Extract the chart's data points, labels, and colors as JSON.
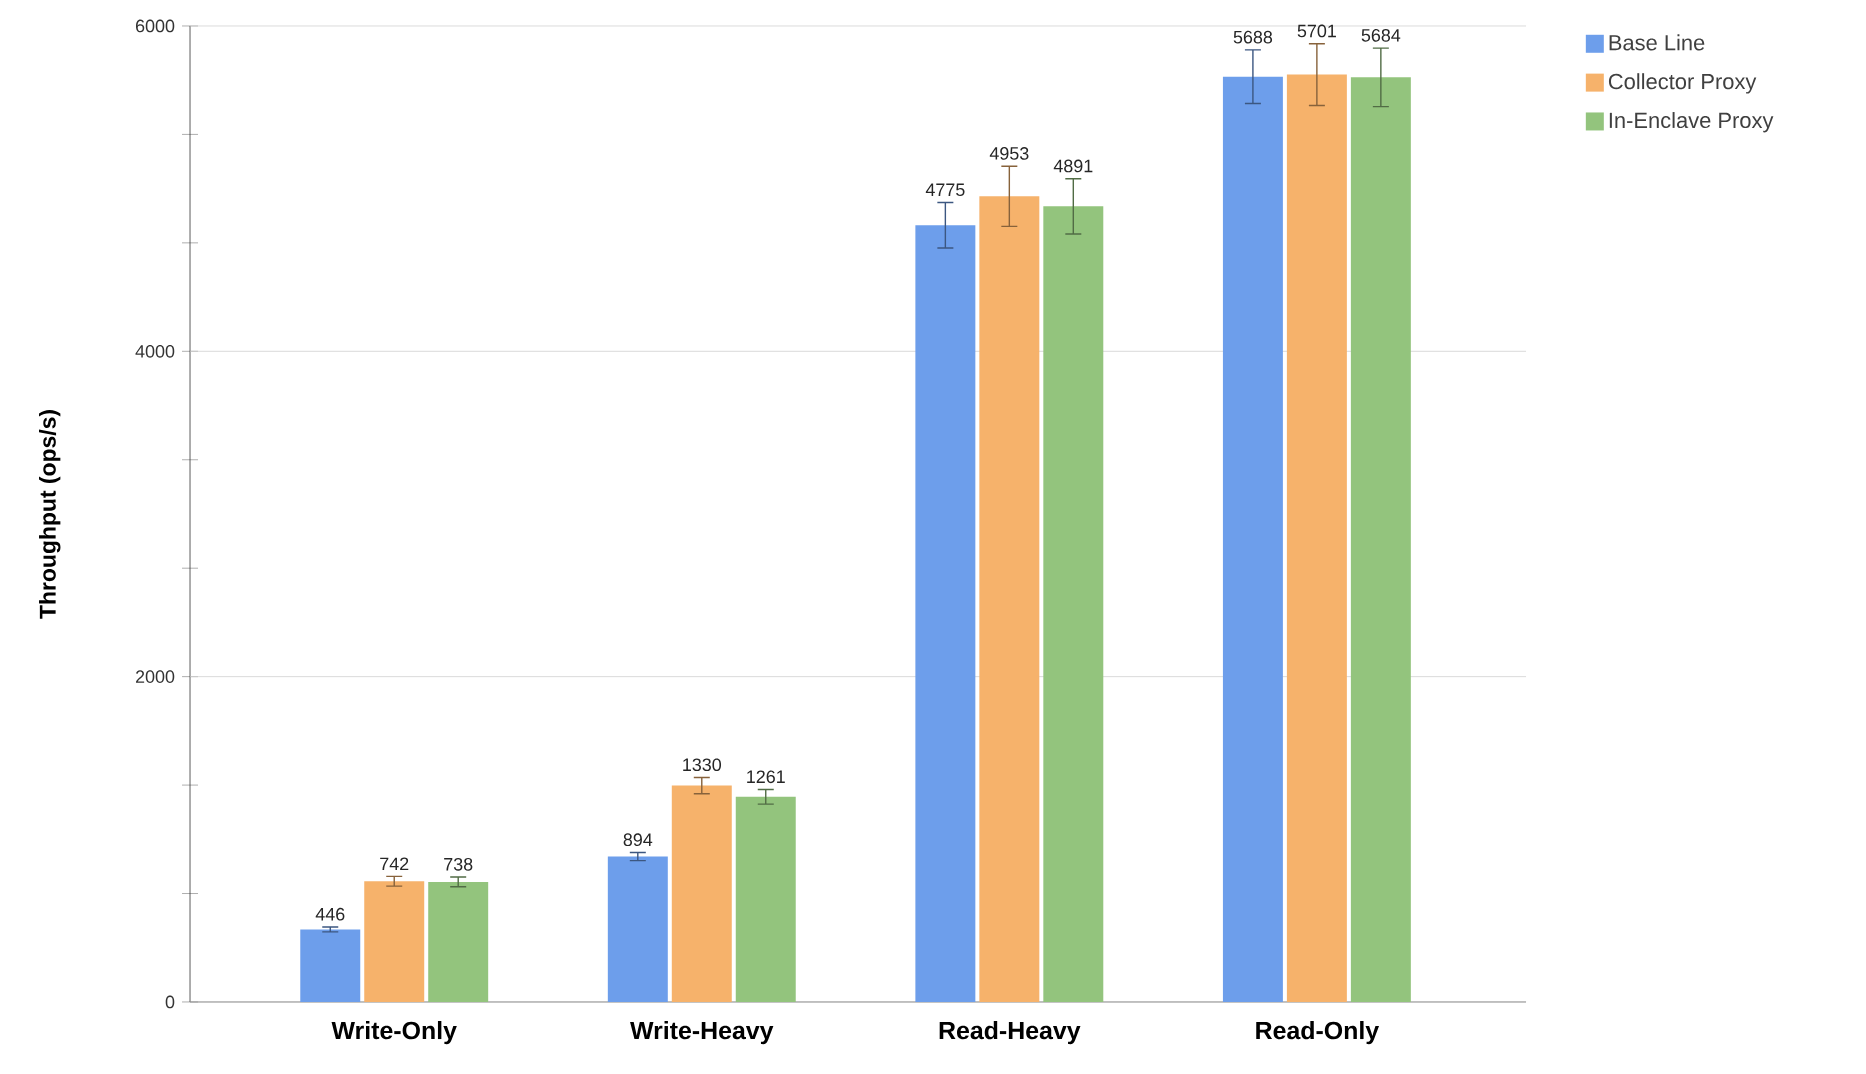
{
  "chart_data": {
    "type": "bar",
    "ylabel": "Throughput (ops/s)",
    "categories": [
      "Write-Only",
      "Write-Heavy",
      "Read-Heavy",
      "Read-Only"
    ],
    "series": [
      {
        "name": "Base Line",
        "color": "#6d9eeb",
        "values": [
          446,
          894,
          4775,
          5688
        ],
        "errors": [
          15,
          25,
          140,
          165
        ]
      },
      {
        "name": "Collector Proxy",
        "color": "#f6b26b",
        "values": [
          742,
          1330,
          4953,
          5701
        ],
        "errors": [
          30,
          50,
          185,
          190
        ]
      },
      {
        "name": "In-Enclave Proxy",
        "color": "#93c47d",
        "values": [
          738,
          1261,
          4891,
          5684
        ],
        "errors": [
          30,
          45,
          170,
          180
        ]
      }
    ],
    "ylim": [
      0,
      6000
    ],
    "yticks": [
      0,
      {
        "value": 666.7,
        "label": null
      },
      {
        "value": 1333.3,
        "label": null
      },
      2000,
      {
        "value": 2666.7,
        "label": null
      },
      {
        "value": 3333.3,
        "label": null
      },
      4000,
      {
        "value": 4666.7,
        "label": null
      },
      {
        "value": 5333.3,
        "label": null
      },
      6000
    ],
    "grid": "y",
    "legend": "top right",
    "data_labels": true
  }
}
